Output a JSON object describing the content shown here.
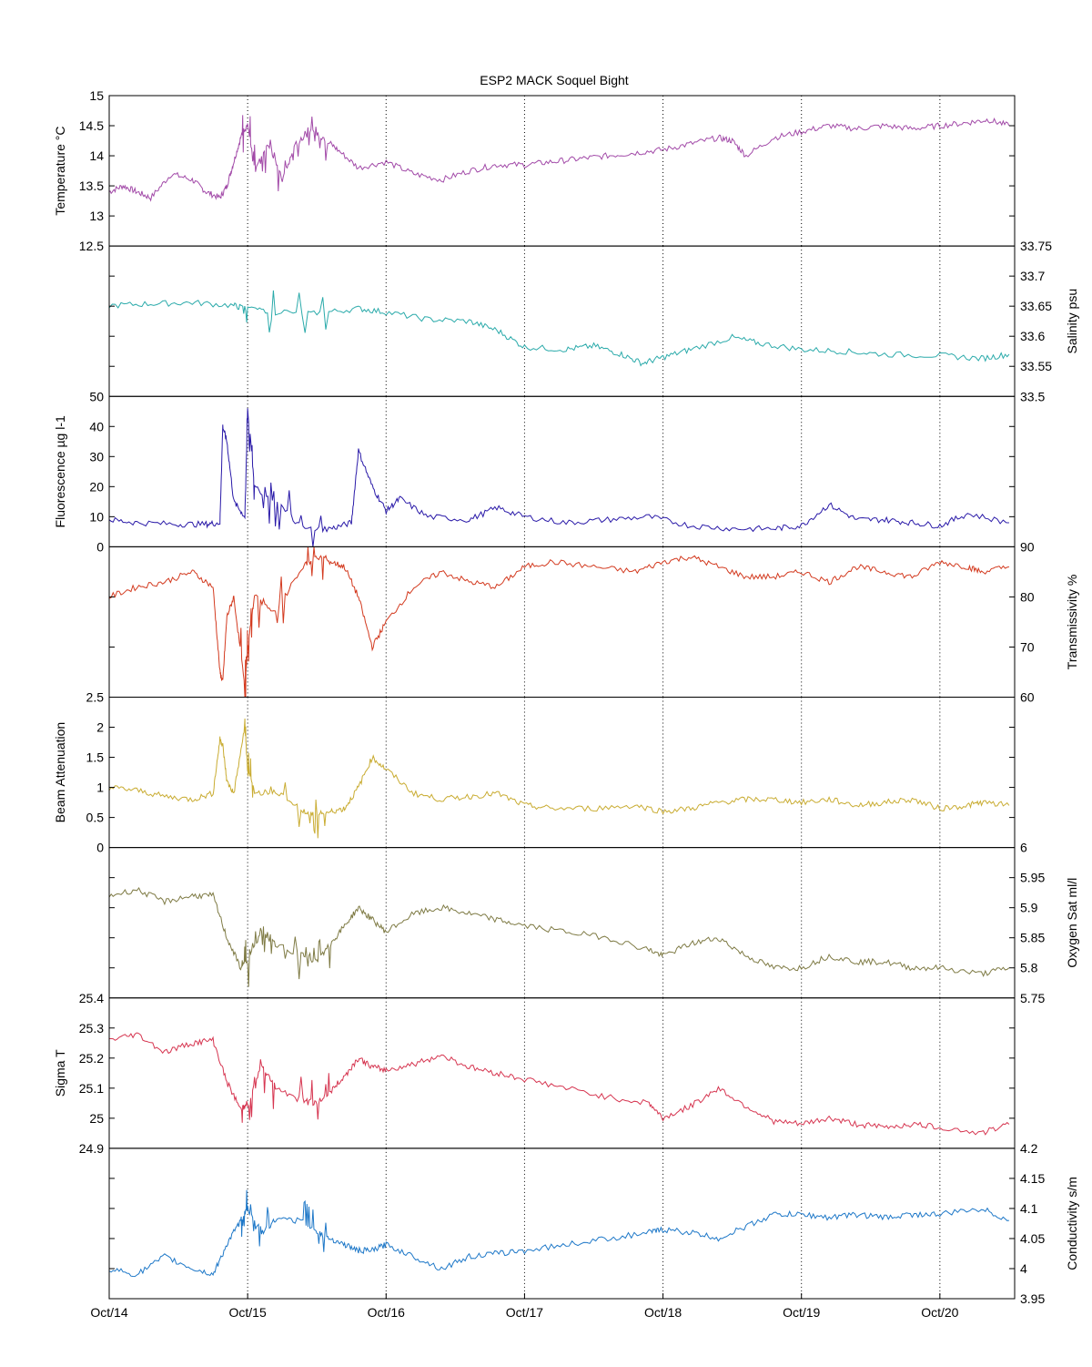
{
  "chart_data": {
    "type": "line",
    "title": "ESP2 MACK  Soquel Bight",
    "x_range": [
      "Oct/14",
      "Oct/20 13:00"
    ],
    "x_ticks": [
      "Oct/14",
      "Oct/15",
      "Oct/16",
      "Oct/17",
      "Oct/18",
      "Oct/19",
      "Oct/20"
    ],
    "grid": "vertical dotted at each day",
    "panels": [
      {
        "name": "temperature",
        "ylabel": "Temperature °C",
        "yaxis_side": "left",
        "ylim": [
          12.5,
          15
        ],
        "yticks": [
          "12.5",
          "13",
          "13.5",
          "14",
          "14.5",
          "15"
        ],
        "color": "#a24aa8",
        "series": [
          {
            "name": "Temperature",
            "x": [
              0,
              0.1,
              0.2,
              0.3,
              0.45,
              0.6,
              0.7,
              0.8,
              0.85,
              0.9,
              0.95,
              1.0,
              1.05,
              1.15,
              1.25,
              1.35,
              1.45,
              1.55,
              1.65,
              1.8,
              2.0,
              2.2,
              2.4,
              2.6,
              2.8,
              3.0,
              3.2,
              3.4,
              3.6,
              3.8,
              4.0,
              4.2,
              4.4,
              4.5,
              4.6,
              4.8,
              5.0,
              5.2,
              5.4,
              5.6,
              5.8,
              6.0,
              6.2,
              6.35,
              6.5
            ],
            "y": [
              13.4,
              13.5,
              13.4,
              13.3,
              13.7,
              13.6,
              13.4,
              13.3,
              13.5,
              13.9,
              14.3,
              14.5,
              13.8,
              14.2,
              13.6,
              14.2,
              14.4,
              14.3,
              14.1,
              13.8,
              13.9,
              13.7,
              13.6,
              13.75,
              13.85,
              13.85,
              13.9,
              13.95,
              14.0,
              14.05,
              14.1,
              14.2,
              14.3,
              14.25,
              14.0,
              14.3,
              14.4,
              14.5,
              14.45,
              14.5,
              14.45,
              14.5,
              14.55,
              14.6,
              14.5
            ]
          }
        ]
      },
      {
        "name": "salinity",
        "ylabel": "Salinity psu",
        "yaxis_side": "right",
        "ylim": [
          33.5,
          33.75
        ],
        "yticks": [
          "33.5",
          "33.55",
          "33.6",
          "33.65",
          "33.7",
          "33.75"
        ],
        "color": "#2aaaaa",
        "series": [
          {
            "name": "Salinity",
            "x": [
              0,
              0.3,
              0.6,
              0.9,
              1.0,
              1.2,
              1.5,
              1.8,
              2.0,
              2.3,
              2.6,
              2.8,
              3.0,
              3.3,
              3.5,
              3.7,
              3.85,
              4.0,
              4.2,
              4.5,
              4.7,
              5.0,
              5.3,
              5.6,
              6.0,
              6.3,
              6.5
            ],
            "y": [
              33.651,
              33.654,
              33.656,
              33.651,
              33.645,
              33.64,
              33.638,
              33.646,
              33.64,
              33.628,
              33.625,
              33.61,
              33.582,
              33.578,
              33.584,
              33.57,
              33.555,
              33.565,
              33.578,
              33.598,
              33.588,
              33.578,
              33.575,
              33.57,
              33.568,
              33.563,
              33.57
            ]
          }
        ]
      },
      {
        "name": "fluorescence",
        "ylabel": "Fluorescence µg l-1",
        "yaxis_side": "left",
        "ylim": [
          0,
          50
        ],
        "yticks": [
          "0",
          "10",
          "20",
          "30",
          "40",
          "50"
        ],
        "color": "#2a1aa8",
        "series": [
          {
            "name": "Fluorescence",
            "x": [
              0,
              0.2,
              0.5,
              0.7,
              0.8,
              0.82,
              0.85,
              0.9,
              0.98,
              1.0,
              1.05,
              1.2,
              1.4,
              1.6,
              1.75,
              1.8,
              1.9,
              2.0,
              2.1,
              2.3,
              2.6,
              2.8,
              3.0,
              3.3,
              3.6,
              3.9,
              4.2,
              4.5,
              4.8,
              5.0,
              5.2,
              5.4,
              5.6,
              5.8,
              6.0,
              6.2,
              6.5
            ],
            "y": [
              9,
              8,
              7.5,
              7.5,
              8,
              40,
              35,
              15,
              10,
              46,
              20,
              15,
              6,
              6,
              8,
              32,
              20,
              12,
              16,
              10,
              9,
              13,
              10,
              8,
              9,
              10,
              7,
              6,
              6,
              7,
              14,
              9,
              9,
              8,
              7,
              11,
              8
            ]
          }
        ]
      },
      {
        "name": "transmissivity",
        "ylabel": "Transmissivity %",
        "yaxis_side": "right",
        "ylim": [
          60,
          90
        ],
        "yticks": [
          "60",
          "70",
          "80",
          "90"
        ],
        "color": "#d33a1f",
        "series": [
          {
            "name": "Transmissivity",
            "x": [
              0,
              0.2,
              0.4,
              0.6,
              0.75,
              0.8,
              0.82,
              0.85,
              0.9,
              0.98,
              1.0,
              1.05,
              1.2,
              1.4,
              1.5,
              1.6,
              1.7,
              1.8,
              1.9,
              2.0,
              2.2,
              2.4,
              2.6,
              2.8,
              3.0,
              3.2,
              3.5,
              3.8,
              4.0,
              4.2,
              4.4,
              4.6,
              4.8,
              5.0,
              5.2,
              5.4,
              5.6,
              5.8,
              6.0,
              6.2,
              6.3,
              6.5
            ],
            "y": [
              80,
              82,
              83,
              85,
              82,
              65,
              63,
              76,
              80,
              62,
              70,
              80,
              77,
              86,
              88,
              87,
              86,
              80,
              70,
              75,
              82,
              85,
              83,
              82,
              86,
              87,
              86,
              85,
              87,
              88,
              86,
              84,
              84,
              85,
              83,
              86,
              85,
              84,
              87,
              86,
              85,
              86
            ]
          }
        ]
      },
      {
        "name": "beam_attenuation",
        "ylabel": "Beam Attenuation",
        "yaxis_side": "left",
        "ylim": [
          0,
          2.5
        ],
        "yticks": [
          "0",
          "0.5",
          "1",
          "1.5",
          "2",
          "2.5"
        ],
        "color": "#c9ac32",
        "series": [
          {
            "name": "Beam Attenuation",
            "x": [
              0,
              0.2,
              0.4,
              0.6,
              0.75,
              0.8,
              0.82,
              0.85,
              0.9,
              0.98,
              1.0,
              1.05,
              1.2,
              1.4,
              1.5,
              1.6,
              1.7,
              1.8,
              1.9,
              2.0,
              2.2,
              2.4,
              2.6,
              2.8,
              3.0,
              3.2,
              3.5,
              3.8,
              4.0,
              4.2,
              4.4,
              4.6,
              4.8,
              5.0,
              5.2,
              5.4,
              5.6,
              5.8,
              6.0,
              6.2,
              6.3,
              6.5
            ],
            "y": [
              1.0,
              0.95,
              0.85,
              0.8,
              0.9,
              1.8,
              1.7,
              1.1,
              0.9,
              2.0,
              1.3,
              0.9,
              0.95,
              0.6,
              0.55,
              0.6,
              0.65,
              1.0,
              1.5,
              1.3,
              0.9,
              0.8,
              0.85,
              0.9,
              0.7,
              0.65,
              0.65,
              0.7,
              0.6,
              0.65,
              0.75,
              0.8,
              0.8,
              0.75,
              0.8,
              0.7,
              0.75,
              0.8,
              0.65,
              0.7,
              0.75,
              0.7
            ]
          }
        ]
      },
      {
        "name": "oxygen_sat",
        "ylabel": "Oxygen Sat ml/l",
        "yaxis_side": "right",
        "ylim": [
          5.75,
          6
        ],
        "yticks": [
          "5.75",
          "5.8",
          "5.85",
          "5.9",
          "5.95",
          "6"
        ],
        "color": "#7f7b45",
        "series": [
          {
            "name": "Oxygen Sat",
            "x": [
              0,
              0.2,
              0.4,
              0.6,
              0.75,
              0.85,
              0.95,
              1.0,
              1.1,
              1.2,
              1.4,
              1.5,
              1.6,
              1.7,
              1.8,
              1.9,
              2.0,
              2.2,
              2.4,
              2.6,
              2.8,
              3.0,
              3.3,
              3.6,
              3.9,
              4.0,
              4.2,
              4.4,
              4.6,
              4.8,
              5.0,
              5.2,
              5.4,
              5.6,
              5.8,
              6.0,
              6.3,
              6.5
            ],
            "y": [
              5.92,
              5.93,
              5.91,
              5.92,
              5.92,
              5.85,
              5.8,
              5.81,
              5.86,
              5.84,
              5.82,
              5.81,
              5.84,
              5.87,
              5.9,
              5.88,
              5.86,
              5.89,
              5.9,
              5.89,
              5.88,
              5.87,
              5.86,
              5.85,
              5.83,
              5.82,
              5.84,
              5.85,
              5.82,
              5.8,
              5.8,
              5.82,
              5.81,
              5.81,
              5.8,
              5.8,
              5.79,
              5.8
            ]
          }
        ]
      },
      {
        "name": "sigma_t",
        "ylabel": "Sigma T",
        "yaxis_side": "left",
        "ylim": [
          24.9,
          25.4
        ],
        "yticks": [
          "24.9",
          "25",
          "25.1",
          "25.2",
          "25.3",
          "25.4"
        ],
        "color": "#d63550",
        "series": [
          {
            "name": "Sigma T",
            "x": [
              0,
              0.2,
              0.4,
              0.6,
              0.75,
              0.85,
              0.95,
              1.0,
              1.1,
              1.2,
              1.4,
              1.5,
              1.6,
              1.7,
              1.8,
              1.9,
              2.0,
              2.2,
              2.4,
              2.6,
              2.8,
              3.0,
              3.3,
              3.6,
              3.9,
              4.0,
              4.2,
              4.4,
              4.6,
              4.8,
              5.0,
              5.2,
              5.4,
              5.6,
              5.8,
              6.0,
              6.3,
              6.5
            ],
            "y": [
              25.26,
              25.28,
              25.22,
              25.25,
              25.26,
              25.12,
              25.03,
              25.04,
              25.18,
              25.1,
              25.06,
              25.05,
              25.09,
              25.14,
              25.2,
              25.17,
              25.16,
              25.18,
              25.21,
              25.17,
              25.15,
              25.13,
              25.1,
              25.07,
              25.05,
              25.0,
              25.04,
              25.1,
              25.04,
              24.99,
              24.98,
              25.0,
              24.98,
              24.97,
              24.98,
              24.97,
              24.95,
              24.98
            ]
          }
        ]
      },
      {
        "name": "conductivity",
        "ylabel": "Conductivity s/m",
        "yaxis_side": "right",
        "ylim": [
          3.95,
          4.2
        ],
        "yticks": [
          "3.95",
          "4",
          "4.05",
          "4.1",
          "4.15",
          "4.2"
        ],
        "color": "#1e78c8",
        "series": [
          {
            "name": "Conductivity",
            "x": [
              0,
              0.2,
              0.4,
              0.6,
              0.75,
              0.85,
              0.95,
              1.0,
              1.1,
              1.2,
              1.4,
              1.5,
              1.6,
              1.7,
              1.8,
              1.9,
              2.0,
              2.2,
              2.4,
              2.6,
              2.8,
              3.0,
              3.3,
              3.6,
              3.9,
              4.0,
              4.2,
              4.4,
              4.6,
              4.8,
              5.0,
              5.2,
              5.4,
              5.6,
              5.8,
              6.0,
              6.3,
              6.5
            ],
            "y": [
              4.0,
              3.99,
              4.02,
              4.0,
              3.99,
              4.04,
              4.08,
              4.1,
              4.06,
              4.08,
              4.08,
              4.06,
              4.05,
              4.04,
              4.03,
              4.03,
              4.04,
              4.02,
              4.0,
              4.02,
              4.025,
              4.03,
              4.04,
              4.05,
              4.06,
              4.065,
              4.06,
              4.05,
              4.07,
              4.09,
              4.09,
              4.085,
              4.09,
              4.085,
              4.09,
              4.09,
              4.1,
              4.08
            ]
          }
        ]
      }
    ]
  }
}
